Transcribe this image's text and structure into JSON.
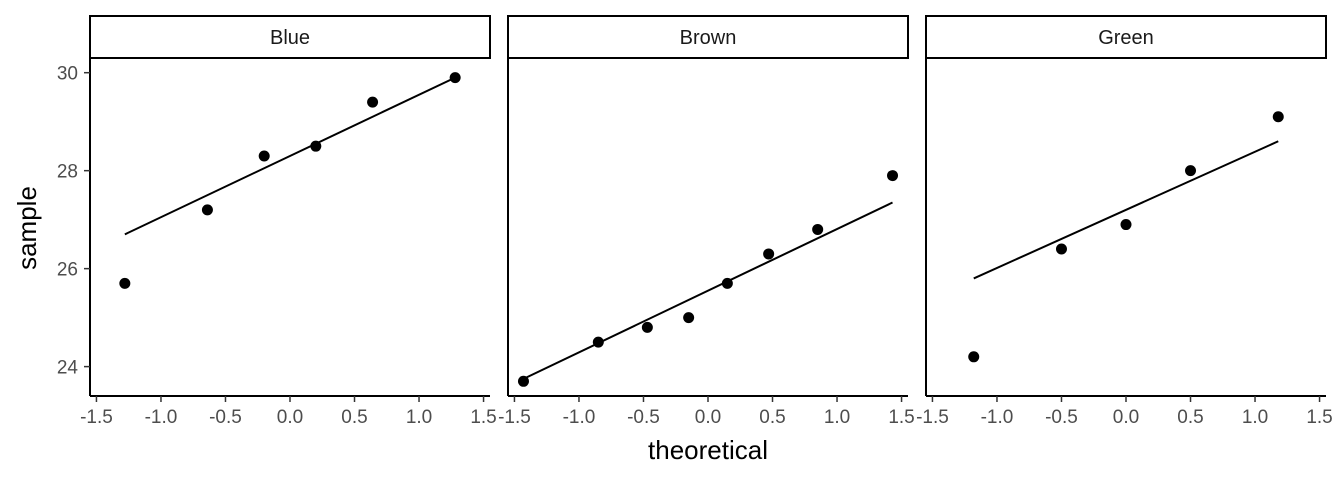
{
  "chart_data": {
    "type": "scatter",
    "xlabel": "theoretical",
    "ylabel": "sample",
    "xlim": [
      -1.55,
      1.55
    ],
    "ylim": [
      23.4,
      30.3
    ],
    "x_ticks": [
      -1.5,
      -1.0,
      -0.5,
      0.0,
      0.5,
      1.0,
      1.5
    ],
    "x_tick_labels": [
      "-1.5",
      "-1.0",
      "-0.5",
      "0.0",
      "0.5",
      "1.0",
      "1.5"
    ],
    "y_ticks": [
      24,
      26,
      28,
      30
    ],
    "y_tick_labels": [
      "24",
      "26",
      "28",
      "30"
    ],
    "grid": false,
    "panels": [
      {
        "label": "Blue",
        "x": [
          -1.28,
          -0.64,
          -0.2,
          0.2,
          0.64,
          1.28
        ],
        "y": [
          25.7,
          27.2,
          28.3,
          28.5,
          29.4,
          29.9
        ],
        "line": {
          "x": [
            -1.28,
            1.28
          ],
          "y": [
            26.7,
            29.9
          ]
        }
      },
      {
        "label": "Brown",
        "x": [
          -1.43,
          -0.85,
          -0.47,
          -0.15,
          0.15,
          0.47,
          0.85,
          1.43
        ],
        "y": [
          23.7,
          24.5,
          24.8,
          25.0,
          25.7,
          26.3,
          26.8,
          27.9
        ],
        "line": {
          "x": [
            -1.43,
            1.43
          ],
          "y": [
            23.75,
            27.35
          ]
        }
      },
      {
        "label": "Green",
        "x": [
          -1.18,
          -0.5,
          0.0,
          0.5,
          1.18
        ],
        "y": [
          24.2,
          26.4,
          26.9,
          28.0,
          29.1
        ],
        "line": {
          "x": [
            -1.18,
            1.18
          ],
          "y": [
            25.8,
            28.6
          ]
        }
      }
    ]
  }
}
